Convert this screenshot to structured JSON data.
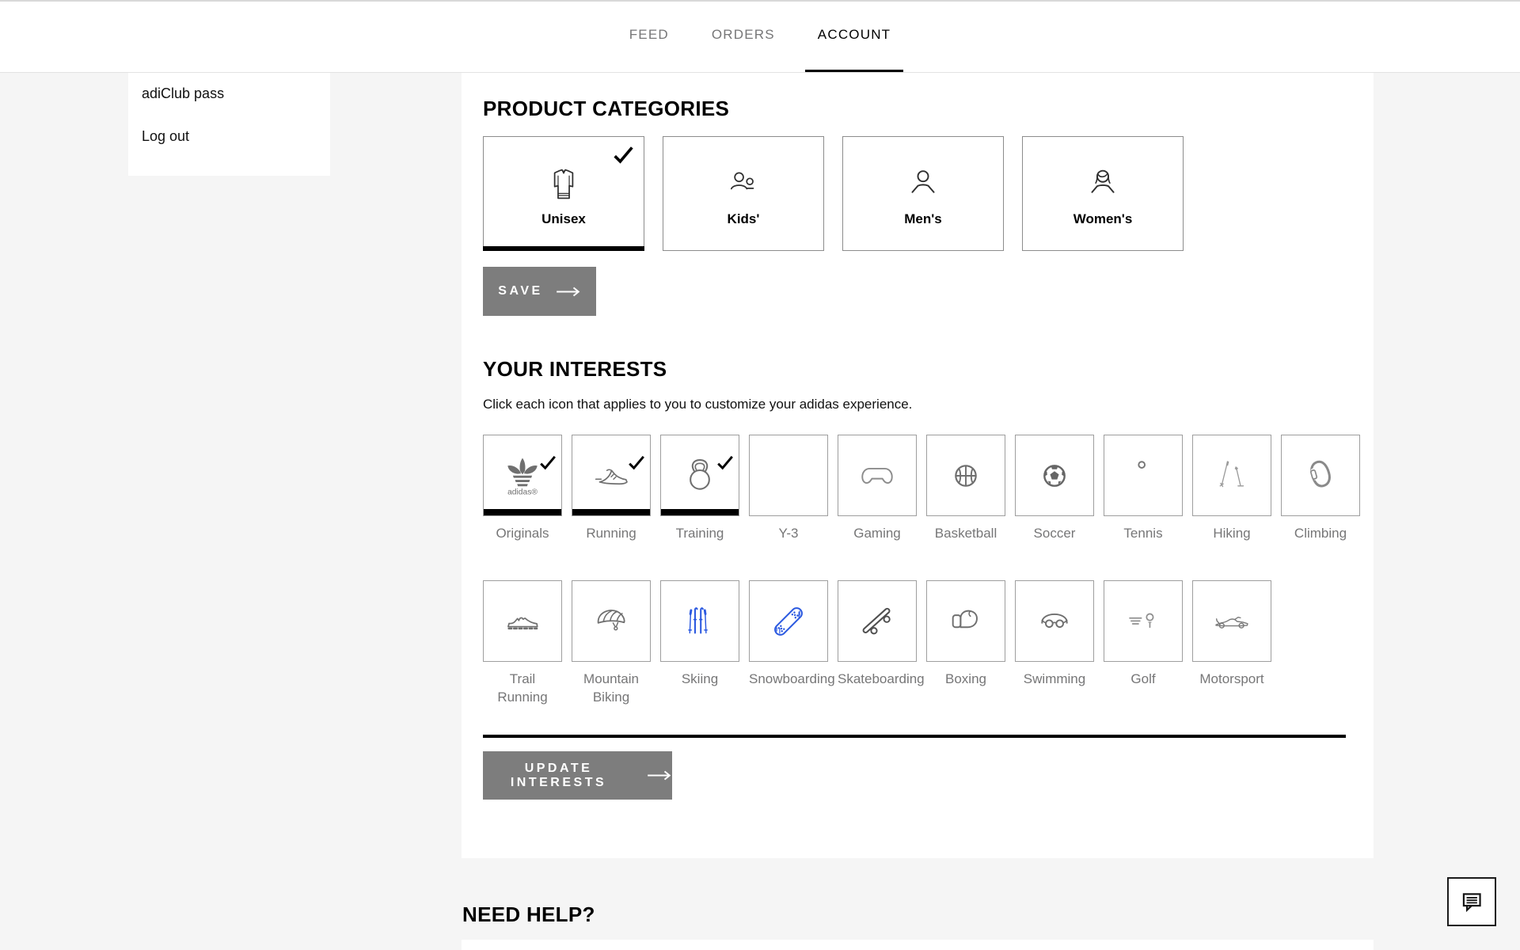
{
  "header": {
    "tabs": [
      {
        "label": "FEED",
        "active": false
      },
      {
        "label": "ORDERS",
        "active": false
      },
      {
        "label": "ACCOUNT",
        "active": true
      }
    ]
  },
  "sidebar": {
    "items": [
      {
        "label": "adiClub pass"
      },
      {
        "label": "Log out"
      }
    ]
  },
  "product_categories": {
    "title": "PRODUCT CATEGORIES",
    "options": [
      {
        "label": "Unisex",
        "icon": "shirt-icon",
        "selected": true
      },
      {
        "label": "Kids'",
        "icon": "kids-icon",
        "selected": false
      },
      {
        "label": "Men's",
        "icon": "man-icon",
        "selected": false
      },
      {
        "label": "Women's",
        "icon": "woman-icon",
        "selected": false
      }
    ],
    "save_label": "SAVE"
  },
  "interests": {
    "title": "YOUR INTERESTS",
    "description": "Click each icon that applies to you to customize your adidas experience.",
    "rows": [
      [
        {
          "label": "Originals",
          "icon": "adidas-originals-icon",
          "checked": true,
          "icon_color": "#6f6f6f"
        },
        {
          "label": "Running",
          "icon": "running-shoe-icon",
          "checked": true,
          "icon_color": "#6f6f6f"
        },
        {
          "label": "Training",
          "icon": "kettlebell-icon",
          "checked": true,
          "icon_color": "#6f6f6f"
        },
        {
          "label": "Y-3",
          "icon": "y3-icon",
          "checked": false,
          "icon_color": "#ffffff"
        },
        {
          "label": "Gaming",
          "icon": "game-controller-icon",
          "checked": false,
          "icon_color": "#8c8c8c"
        },
        {
          "label": "Basketball",
          "icon": "basketball-icon",
          "checked": false,
          "icon_color": "#6f6f6f"
        },
        {
          "label": "Soccer",
          "icon": "soccer-ball-icon",
          "checked": false,
          "icon_color": "#666666"
        },
        {
          "label": "Tennis",
          "icon": "tennis-ball-icon",
          "checked": false,
          "icon_color": "#777777"
        },
        {
          "label": "Hiking",
          "icon": "trekking-poles-icon",
          "checked": false,
          "icon_color": "#9a9a9a"
        },
        {
          "label": "Climbing",
          "icon": "carabiner-icon",
          "checked": false,
          "icon_color": "#8a8a8a"
        }
      ],
      [
        {
          "label": "Trail Running",
          "icon": "trail-shoe-icon",
          "checked": false,
          "icon_color": "#6f6f6f"
        },
        {
          "label": "Mountain Biking",
          "icon": "bike-helmet-icon",
          "checked": false,
          "icon_color": "#6f6f6f"
        },
        {
          "label": "Skiing",
          "icon": "skis-icon",
          "checked": false,
          "icon_color": "#2b59e0"
        },
        {
          "label": "Snowboarding",
          "icon": "snowboard-icon",
          "checked": false,
          "icon_color": "#2b59e0"
        },
        {
          "label": "Skateboarding",
          "icon": "skateboard-icon",
          "checked": false,
          "icon_color": "#4f4f4f"
        },
        {
          "label": "Boxing",
          "icon": "boxing-glove-icon",
          "checked": false,
          "icon_color": "#6f6f6f"
        },
        {
          "label": "Swimming",
          "icon": "swim-goggles-icon",
          "checked": false,
          "icon_color": "#6f6f6f"
        },
        {
          "label": "Golf",
          "icon": "golf-tee-icon",
          "checked": false,
          "icon_color": "#8f8f8f"
        },
        {
          "label": "Motorsport",
          "icon": "race-car-icon",
          "checked": false,
          "icon_color": "#7a7a7a"
        }
      ]
    ],
    "update_label": "UPDATE INTERESTS"
  },
  "help": {
    "title": "NEED HELP?"
  },
  "colors": {
    "accent_blue": "#2b59e0",
    "button_gray": "#7d7d7d",
    "label_gray": "#767677",
    "selected_black": "#000000",
    "page_background": "#f5f5f5"
  }
}
